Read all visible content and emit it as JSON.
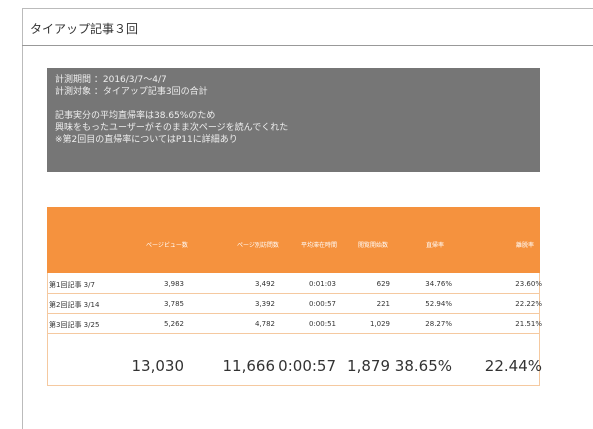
{
  "header": {
    "title": "タイアップ記事３回"
  },
  "summary": {
    "lines": [
      "計測期間 ：2016/3/7～4/7",
      "計測対象 ：タイアップ記事3回の合計",
      "記事実分の平均直帰率は38.65%のため",
      "興味をもったユーザーがそのまま次ページを読んでくれた",
      "※第2回目の直帰率についてはP11に詳細あり"
    ]
  },
  "table": {
    "headers": [
      "ページビュー数",
      "ページ別訪問数",
      "平均滞在時間",
      "閲覧開始数",
      "直帰率",
      "離脱率"
    ],
    "rows": [
      [
        "第1回記事 3/7",
        "3,983",
        "3,492",
        "0:01:03",
        "629",
        "34.76%",
        "23.60%"
      ],
      [
        "第2回記事 3/14",
        "3,785",
        "3,392",
        "0:00:57",
        "221",
        "52.94%",
        "22.22%"
      ],
      [
        "第3回記事 3/25",
        "5,262",
        "4,782",
        "0:00:51",
        "1,029",
        "28.27%",
        "21.51%"
      ]
    ],
    "total": [
      "13,030",
      "11,666",
      "0:00:57",
      "1,879",
      "38.65%",
      "22.44%"
    ]
  }
}
